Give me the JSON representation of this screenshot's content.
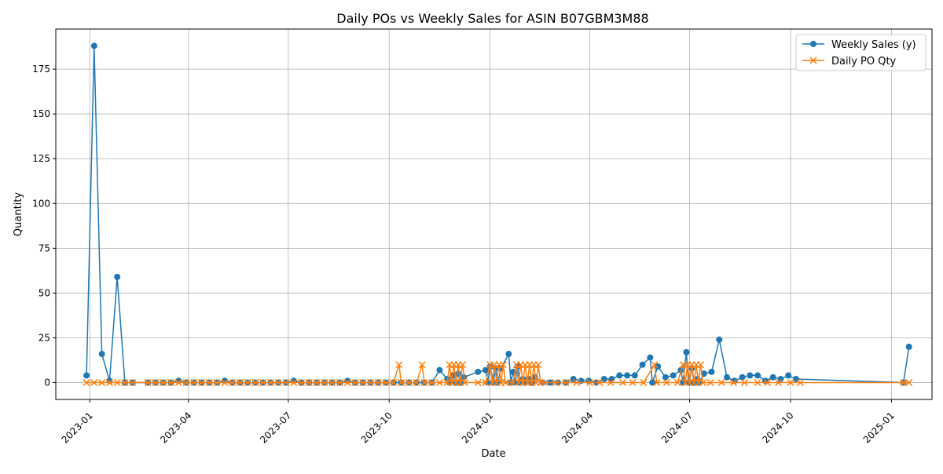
{
  "chart_data": {
    "type": "line",
    "title": "Daily POs vs Weekly Sales for ASIN B07GBM3M88",
    "xlabel": "Date",
    "ylabel": "Quantity",
    "x_type": "date",
    "xlim": [
      "2022-12-01",
      "2025-02-07"
    ],
    "ylim": [
      -9.4,
      197.4
    ],
    "x_ticks": [
      "2023-01-01",
      "2023-04-01",
      "2023-07-01",
      "2023-10-01",
      "2024-01-01",
      "2024-04-01",
      "2024-07-01",
      "2024-10-01",
      "2025-01-01"
    ],
    "x_tick_labels": [
      "2023-01",
      "2023-04",
      "2023-07",
      "2023-10",
      "2024-01",
      "2024-04",
      "2024-07",
      "2024-10",
      "2025-01"
    ],
    "y_ticks": [
      0,
      25,
      50,
      75,
      100,
      125,
      150,
      175
    ],
    "y_tick_labels": [
      "0",
      "25",
      "50",
      "75",
      "100",
      "125",
      "150",
      "175"
    ],
    "grid": true,
    "legend_position": "upper right",
    "series": [
      {
        "name": "Weekly Sales (y)",
        "color": "#1f77b4",
        "marker": "circle",
        "points": [
          [
            "2022-12-29",
            4
          ],
          [
            "2023-01-05",
            188
          ],
          [
            "2023-01-12",
            16
          ],
          [
            "2023-01-19",
            1
          ],
          [
            "2023-01-26",
            59
          ],
          [
            "2023-02-02",
            0
          ],
          [
            "2023-02-09",
            0
          ],
          [
            "2023-02-23",
            0
          ],
          [
            "2023-03-02",
            0
          ],
          [
            "2023-03-09",
            0
          ],
          [
            "2023-03-16",
            0
          ],
          [
            "2023-03-23",
            1
          ],
          [
            "2023-03-30",
            0
          ],
          [
            "2023-04-06",
            0
          ],
          [
            "2023-04-13",
            0
          ],
          [
            "2023-04-20",
            0
          ],
          [
            "2023-04-27",
            0
          ],
          [
            "2023-05-04",
            1
          ],
          [
            "2023-05-11",
            0
          ],
          [
            "2023-05-18",
            0
          ],
          [
            "2023-05-25",
            0
          ],
          [
            "2023-06-01",
            0
          ],
          [
            "2023-06-08",
            0
          ],
          [
            "2023-06-15",
            0
          ],
          [
            "2023-06-22",
            0
          ],
          [
            "2023-06-29",
            0
          ],
          [
            "2023-07-06",
            1
          ],
          [
            "2023-07-13",
            0
          ],
          [
            "2023-07-20",
            0
          ],
          [
            "2023-07-27",
            0
          ],
          [
            "2023-08-03",
            0
          ],
          [
            "2023-08-10",
            0
          ],
          [
            "2023-08-17",
            0
          ],
          [
            "2023-08-24",
            1
          ],
          [
            "2023-08-31",
            0
          ],
          [
            "2023-09-07",
            0
          ],
          [
            "2023-09-14",
            0
          ],
          [
            "2023-09-21",
            0
          ],
          [
            "2023-09-28",
            0
          ],
          [
            "2023-10-05",
            0
          ],
          [
            "2023-10-12",
            0
          ],
          [
            "2023-10-19",
            0
          ],
          [
            "2023-10-26",
            0
          ],
          [
            "2023-11-02",
            0
          ],
          [
            "2023-11-09",
            0
          ],
          [
            "2023-11-16",
            7
          ],
          [
            "2023-11-23",
            2
          ],
          [
            "2023-11-25",
            0
          ],
          [
            "2023-11-28",
            4
          ],
          [
            "2023-11-30",
            0
          ],
          [
            "2023-12-03",
            5
          ],
          [
            "2023-12-05",
            0
          ],
          [
            "2023-12-08",
            3
          ],
          [
            "2023-12-21",
            6
          ],
          [
            "2023-12-28",
            7
          ],
          [
            "2023-12-30",
            0
          ],
          [
            "2024-01-01",
            9
          ],
          [
            "2024-01-04",
            0
          ],
          [
            "2024-01-06",
            8
          ],
          [
            "2024-01-08",
            0
          ],
          [
            "2024-01-11",
            8
          ],
          [
            "2024-01-18",
            16
          ],
          [
            "2024-01-20",
            0
          ],
          [
            "2024-01-22",
            6
          ],
          [
            "2024-01-24",
            0
          ],
          [
            "2024-01-26",
            9
          ],
          [
            "2024-01-28",
            0
          ],
          [
            "2024-01-31",
            2
          ],
          [
            "2024-02-02",
            0
          ],
          [
            "2024-02-05",
            2
          ],
          [
            "2024-02-08",
            0
          ],
          [
            "2024-02-11",
            3
          ],
          [
            "2024-02-18",
            0
          ],
          [
            "2024-02-25",
            0
          ],
          [
            "2024-03-03",
            0
          ],
          [
            "2024-03-10",
            0
          ],
          [
            "2024-03-17",
            2
          ],
          [
            "2024-03-24",
            1
          ],
          [
            "2024-03-31",
            1
          ],
          [
            "2024-04-07",
            0
          ],
          [
            "2024-04-14",
            2
          ],
          [
            "2024-04-21",
            2
          ],
          [
            "2024-04-28",
            4
          ],
          [
            "2024-05-05",
            4
          ],
          [
            "2024-05-12",
            4
          ],
          [
            "2024-05-19",
            10
          ],
          [
            "2024-05-26",
            14
          ],
          [
            "2024-05-28",
            0
          ],
          [
            "2024-06-02",
            9
          ],
          [
            "2024-06-09",
            3
          ],
          [
            "2024-06-16",
            4
          ],
          [
            "2024-06-23",
            7
          ],
          [
            "2024-06-25",
            0
          ],
          [
            "2024-06-28",
            17
          ],
          [
            "2024-06-30",
            0
          ],
          [
            "2024-07-03",
            8
          ],
          [
            "2024-07-05",
            0
          ],
          [
            "2024-07-08",
            2
          ],
          [
            "2024-07-10",
            0
          ],
          [
            "2024-07-14",
            5
          ],
          [
            "2024-07-21",
            6
          ],
          [
            "2024-07-28",
            24
          ],
          [
            "2024-08-04",
            3
          ],
          [
            "2024-08-11",
            1
          ],
          [
            "2024-08-18",
            3
          ],
          [
            "2024-08-25",
            4
          ],
          [
            "2024-09-01",
            4
          ],
          [
            "2024-09-08",
            1
          ],
          [
            "2024-09-15",
            3
          ],
          [
            "2024-09-22",
            2
          ],
          [
            "2024-09-29",
            4
          ],
          [
            "2024-10-06",
            2
          ],
          [
            "2025-01-12",
            0
          ],
          [
            "2025-01-17",
            20
          ]
        ]
      },
      {
        "name": "Daily PO Qty",
        "color": "#ff7f0e",
        "marker": "x",
        "points": [
          [
            "2022-12-29",
            0
          ],
          [
            "2023-01-05",
            0
          ],
          [
            "2023-01-12",
            0
          ],
          [
            "2023-01-19",
            0
          ],
          [
            "2023-01-26",
            0
          ],
          [
            "2023-02-02",
            0
          ],
          [
            "2023-02-09",
            0
          ],
          [
            "2023-02-23",
            0
          ],
          [
            "2023-03-02",
            0
          ],
          [
            "2023-03-09",
            0
          ],
          [
            "2023-03-16",
            0
          ],
          [
            "2023-03-23",
            0
          ],
          [
            "2023-03-30",
            0
          ],
          [
            "2023-04-06",
            0
          ],
          [
            "2023-04-13",
            0
          ],
          [
            "2023-04-20",
            0
          ],
          [
            "2023-04-27",
            0
          ],
          [
            "2023-05-04",
            0
          ],
          [
            "2023-05-11",
            0
          ],
          [
            "2023-05-18",
            0
          ],
          [
            "2023-05-25",
            0
          ],
          [
            "2023-06-01",
            0
          ],
          [
            "2023-06-08",
            0
          ],
          [
            "2023-06-15",
            0
          ],
          [
            "2023-06-22",
            0
          ],
          [
            "2023-06-29",
            0
          ],
          [
            "2023-07-06",
            0
          ],
          [
            "2023-07-13",
            0
          ],
          [
            "2023-07-20",
            0
          ],
          [
            "2023-07-27",
            0
          ],
          [
            "2023-08-03",
            0
          ],
          [
            "2023-08-10",
            0
          ],
          [
            "2023-08-17",
            0
          ],
          [
            "2023-08-24",
            0
          ],
          [
            "2023-08-31",
            0
          ],
          [
            "2023-09-07",
            0
          ],
          [
            "2023-09-14",
            0
          ],
          [
            "2023-09-21",
            0
          ],
          [
            "2023-09-28",
            0
          ],
          [
            "2023-10-05",
            0
          ],
          [
            "2023-10-10",
            10
          ],
          [
            "2023-10-12",
            0
          ],
          [
            "2023-10-19",
            0
          ],
          [
            "2023-10-26",
            0
          ],
          [
            "2023-10-31",
            10
          ],
          [
            "2023-11-02",
            0
          ],
          [
            "2023-11-09",
            0
          ],
          [
            "2023-11-16",
            0
          ],
          [
            "2023-11-23",
            0
          ],
          [
            "2023-11-25",
            10
          ],
          [
            "2023-11-27",
            0
          ],
          [
            "2023-11-29",
            10
          ],
          [
            "2023-12-01",
            0
          ],
          [
            "2023-12-03",
            10
          ],
          [
            "2023-12-05",
            0
          ],
          [
            "2023-12-07",
            10
          ],
          [
            "2023-12-09",
            0
          ],
          [
            "2023-12-21",
            0
          ],
          [
            "2023-12-28",
            0
          ],
          [
            "2024-01-01",
            10
          ],
          [
            "2024-01-03",
            0
          ],
          [
            "2024-01-05",
            10
          ],
          [
            "2024-01-07",
            0
          ],
          [
            "2024-01-09",
            10
          ],
          [
            "2024-01-11",
            0
          ],
          [
            "2024-01-13",
            10
          ],
          [
            "2024-01-15",
            0
          ],
          [
            "2024-01-22",
            0
          ],
          [
            "2024-01-25",
            10
          ],
          [
            "2024-01-27",
            0
          ],
          [
            "2024-01-29",
            10
          ],
          [
            "2024-01-31",
            0
          ],
          [
            "2024-02-02",
            10
          ],
          [
            "2024-02-04",
            0
          ],
          [
            "2024-02-06",
            10
          ],
          [
            "2024-02-08",
            0
          ],
          [
            "2024-02-10",
            10
          ],
          [
            "2024-02-12",
            0
          ],
          [
            "2024-02-14",
            10
          ],
          [
            "2024-02-16",
            0
          ],
          [
            "2024-02-20",
            0
          ],
          [
            "2024-03-01",
            0
          ],
          [
            "2024-03-10",
            0
          ],
          [
            "2024-03-20",
            0
          ],
          [
            "2024-04-01",
            0
          ],
          [
            "2024-04-10",
            0
          ],
          [
            "2024-04-20",
            0
          ],
          [
            "2024-05-01",
            0
          ],
          [
            "2024-05-10",
            0
          ],
          [
            "2024-05-20",
            0
          ],
          [
            "2024-05-30",
            10
          ],
          [
            "2024-06-01",
            0
          ],
          [
            "2024-06-10",
            0
          ],
          [
            "2024-06-20",
            0
          ],
          [
            "2024-06-25",
            10
          ],
          [
            "2024-06-27",
            0
          ],
          [
            "2024-06-29",
            10
          ],
          [
            "2024-07-01",
            0
          ],
          [
            "2024-07-03",
            10
          ],
          [
            "2024-07-05",
            0
          ],
          [
            "2024-07-07",
            10
          ],
          [
            "2024-07-09",
            0
          ],
          [
            "2024-07-11",
            10
          ],
          [
            "2024-07-13",
            0
          ],
          [
            "2024-07-20",
            0
          ],
          [
            "2024-07-30",
            0
          ],
          [
            "2024-08-10",
            0
          ],
          [
            "2024-08-20",
            0
          ],
          [
            "2024-09-01",
            0
          ],
          [
            "2024-09-10",
            0
          ],
          [
            "2024-09-20",
            0
          ],
          [
            "2024-10-01",
            0
          ],
          [
            "2024-10-10",
            0
          ],
          [
            "2025-01-12",
            0
          ],
          [
            "2025-01-17",
            0
          ]
        ]
      }
    ]
  }
}
